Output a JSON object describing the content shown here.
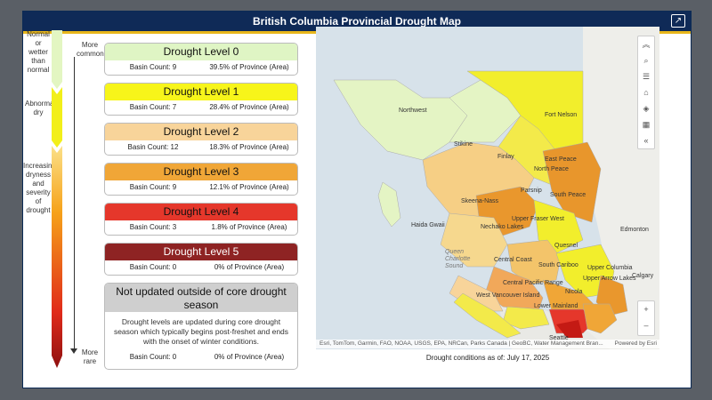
{
  "header": {
    "title": "British Columbia Provincial Drought Map",
    "share_icon": "share-icon"
  },
  "scale": {
    "top_label": "Normal or wetter than normal",
    "abnormal_label": "Abnormally dry",
    "increasing_label": "Increasing dryness and severity of drought",
    "more_common": "More common",
    "more_rare": "More rare"
  },
  "levels": [
    {
      "title": "Drought Level 0",
      "count": "Basin Count: 9",
      "pct": "39.5% of Province (Area)",
      "color": "#dff5c4"
    },
    {
      "title": "Drought Level 1",
      "count": "Basin Count: 7",
      "pct": "28.4% of Province (Area)",
      "color": "#f7f51a"
    },
    {
      "title": "Drought Level 2",
      "count": "Basin Count: 12",
      "pct": "18.3% of Province (Area)",
      "color": "#f8d49a"
    },
    {
      "title": "Drought Level 3",
      "count": "Basin Count: 9",
      "pct": "12.1% of Province (Area)",
      "color": "#f0a637"
    },
    {
      "title": "Drought Level 4",
      "count": "Basin Count: 3",
      "pct": "1.8% of Province (Area)",
      "color": "#e5372b"
    },
    {
      "title": "Drought Level 5",
      "count": "Basin Count: 0",
      "pct": "0% of Province (Area)",
      "color": "#8e2323"
    }
  ],
  "not_updated": {
    "title": "Not updated outside of core drought season",
    "desc": "Drought levels are updated during core drought season which typically begins post-freshet and ends with the onset of winter conditions.",
    "count": "Basin Count: 0",
    "pct": "0% of Province (Area)"
  },
  "map": {
    "labels": [
      "Northwest",
      "Fort Nelson",
      "Stikine",
      "Finlay",
      "East Peace",
      "North Peace",
      "Parsnip",
      "South Peace",
      "Skeena-Nass",
      "Upper Fraser West",
      "Nechako Lakes",
      "Haida Gwaii",
      "Quesnel",
      "Edmonton",
      "Central Coast",
      "South Cariboo",
      "Upper Columbia",
      "Calgary",
      "Central Pacific Range",
      "Upper Arrow Lakes",
      "West Vancouver Island",
      "Nicola",
      "Lower Mainland",
      "Seattle"
    ],
    "toolbar_icons": [
      "collapse-up-icon",
      "search-icon",
      "list-icon",
      "home-icon",
      "layers-icon",
      "basemap-gallery-icon",
      "collapse-left-icon"
    ],
    "zoom_in": "+",
    "zoom_out": "–",
    "attribution": "Esri, TomTom, Garmin, FAO, NOAA, USGS, EPA, NRCan, Parks Canada | GeoBC, Water Management Bran...",
    "powered": "Powered by Esri",
    "as_of": "Drought conditions as of: July 17, 2025"
  }
}
